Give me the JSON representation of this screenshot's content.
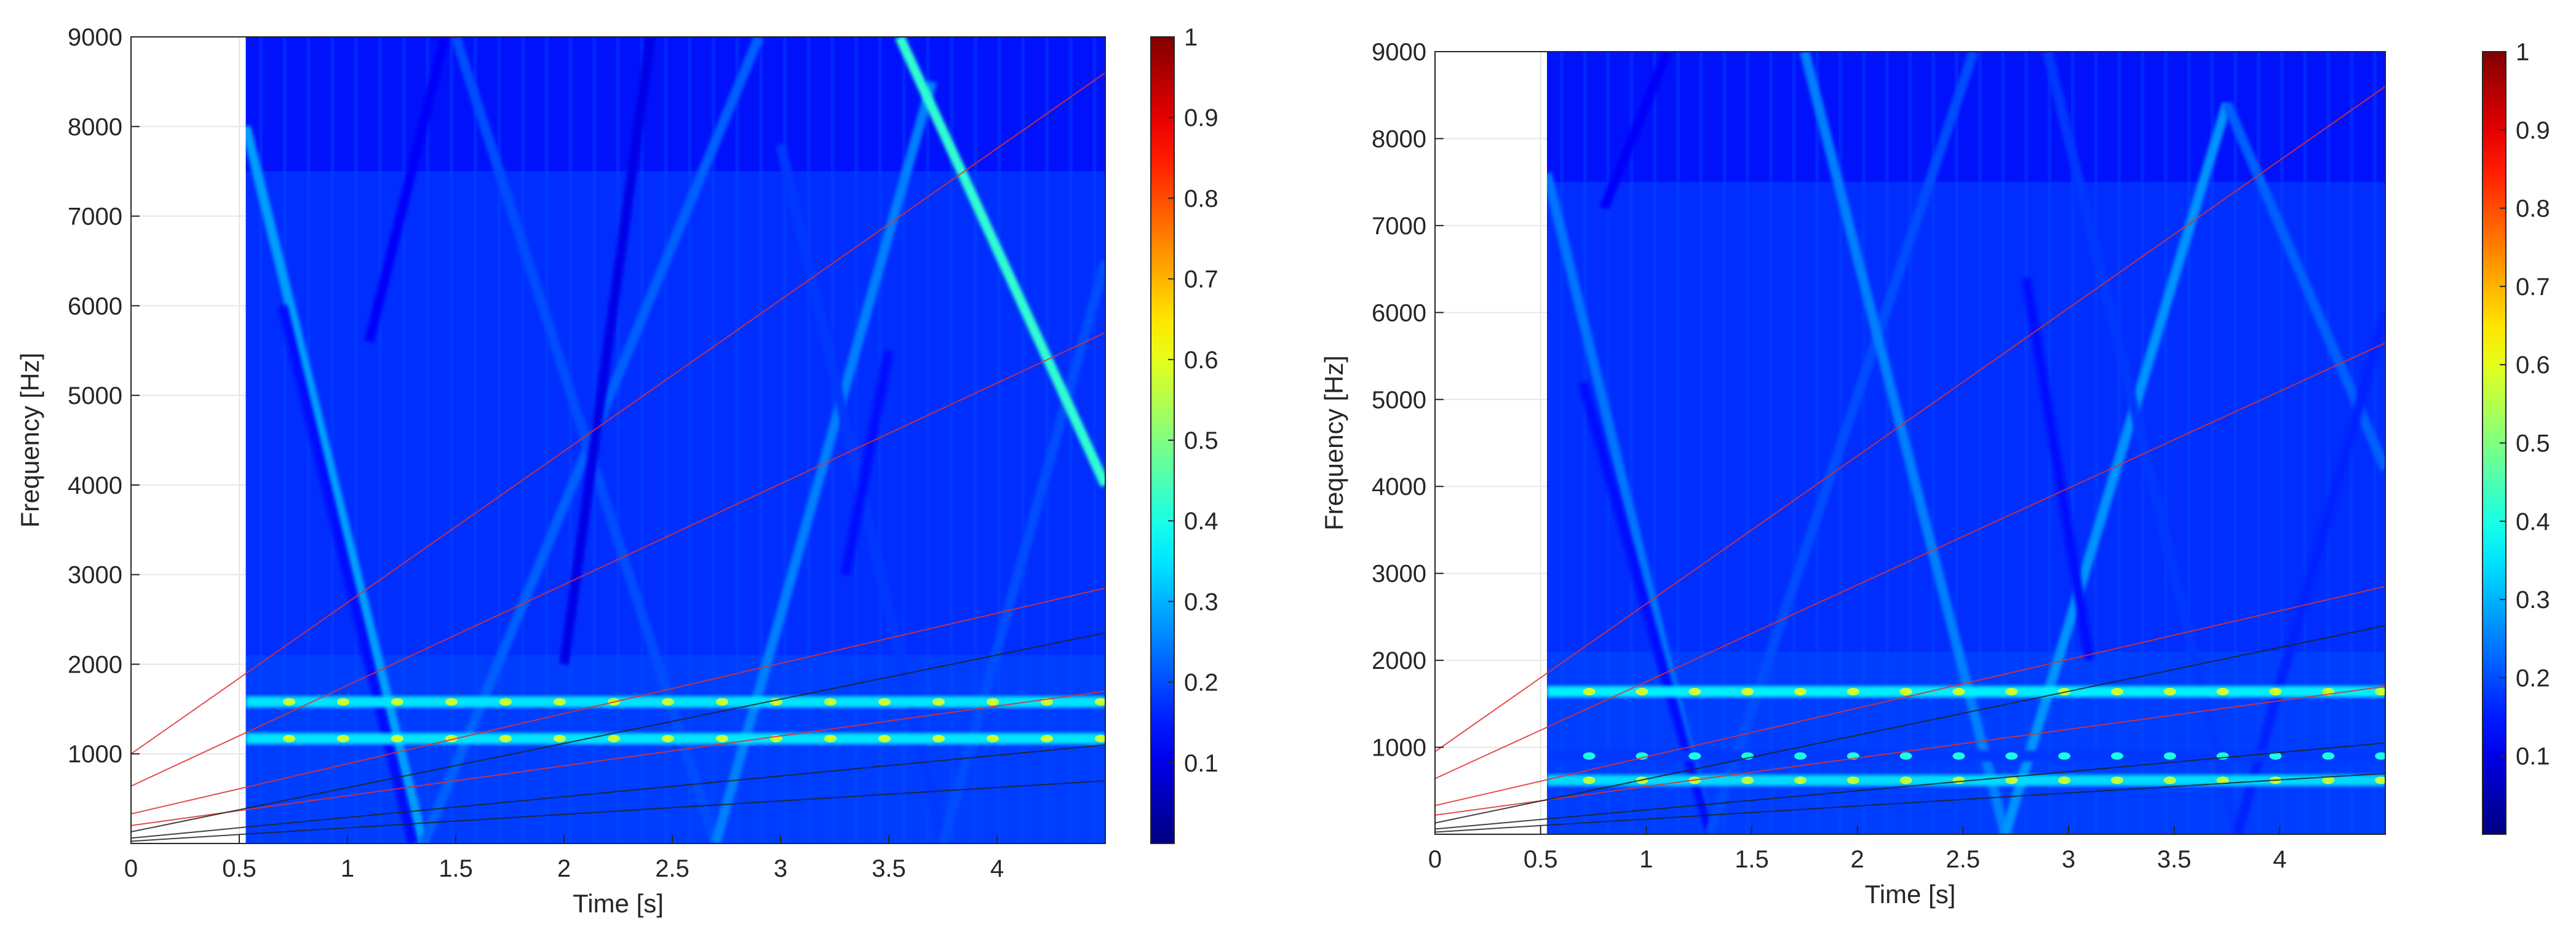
{
  "chart_data": [
    {
      "type": "heatmap",
      "xlabel": "Time [s]",
      "ylabel": "Frequency [Hz]",
      "xlim": [
        0,
        4.5
      ],
      "ylim": [
        0,
        9000
      ],
      "data_start_time": 0.53,
      "xticks": [
        0,
        0.5,
        1,
        1.5,
        2,
        2.5,
        3,
        3.5,
        4
      ],
      "xtick_labels": [
        "0",
        "0.5",
        "1",
        "1.5",
        "2",
        "2.5",
        "3",
        "3.5",
        "4"
      ],
      "yticks": [
        1000,
        2000,
        3000,
        4000,
        5000,
        6000,
        7000,
        8000,
        9000
      ],
      "ytick_labels": [
        "1000",
        "2000",
        "3000",
        "4000",
        "5000",
        "6000",
        "7000",
        "8000",
        "9000"
      ],
      "grid": true,
      "colormap": "jet",
      "colorbar": {
        "range": [
          0,
          1
        ],
        "ticks": [
          0.1,
          0.2,
          0.3,
          0.4,
          0.5,
          0.6,
          0.7,
          0.8,
          0.9,
          1
        ],
        "tick_labels": [
          "0.1",
          "0.2",
          "0.3",
          "0.4",
          "0.5",
          "0.6",
          "0.7",
          "0.8",
          "0.9",
          "1"
        ]
      },
      "horizontal_bands": [
        {
          "freq": 1580,
          "intensity": 0.35
        },
        {
          "freq": 1170,
          "intensity": 0.35
        }
      ],
      "diagonal_tracks": [
        {
          "points": [
            [
              0.53,
              8000
            ],
            [
              1.35,
              0
            ]
          ],
          "intensity": 0.28
        },
        {
          "points": [
            [
              0.7,
              6000
            ],
            [
              1.3,
              0
            ]
          ],
          "intensity": 0.14
        },
        {
          "points": [
            [
              1.35,
              0
            ],
            [
              2.9,
              9000
            ]
          ],
          "intensity": 0.22
        },
        {
          "points": [
            [
              1.5,
              9000
            ],
            [
              2.7,
              0
            ]
          ],
          "intensity": 0.2
        },
        {
          "points": [
            [
              1.1,
              5600
            ],
            [
              1.45,
              9000
            ]
          ],
          "intensity": 0.12
        },
        {
          "points": [
            [
              2.0,
              2000
            ],
            [
              2.4,
              9000
            ]
          ],
          "intensity": 0.1
        },
        {
          "points": [
            [
              2.7,
              0
            ],
            [
              3.7,
              8500
            ]
          ],
          "intensity": 0.25
        },
        {
          "points": [
            [
              3.0,
              7800
            ],
            [
              3.75,
              0
            ]
          ],
          "intensity": 0.18
        },
        {
          "points": [
            [
              3.75,
              0
            ],
            [
              4.5,
              6500
            ]
          ],
          "intensity": 0.2
        },
        {
          "points": [
            [
              3.55,
              9000
            ],
            [
              4.5,
              4000
            ]
          ],
          "intensity": 0.42
        },
        {
          "points": [
            [
              3.3,
              3000
            ],
            [
              3.5,
              5500
            ]
          ],
          "intensity": 0.14
        }
      ],
      "overlay_lines": [
        {
          "color": "#e03030",
          "points": [
            [
              0,
              1000
            ],
            [
              4.5,
              8600
            ]
          ]
        },
        {
          "color": "#e03030",
          "points": [
            [
              0,
              640
            ],
            [
              4.5,
              5700
            ]
          ]
        },
        {
          "color": "#e03030",
          "points": [
            [
              0,
              330
            ],
            [
              4.5,
              2850
            ]
          ]
        },
        {
          "color": "#e03030",
          "points": [
            [
              0,
              200
            ],
            [
              4.5,
              1700
            ]
          ]
        },
        {
          "color": "#222222",
          "points": [
            [
              0,
              130
            ],
            [
              4.5,
              2350
            ]
          ]
        },
        {
          "color": "#222222",
          "points": [
            [
              0,
              60
            ],
            [
              4.5,
              1100
            ]
          ]
        },
        {
          "color": "#222222",
          "points": [
            [
              0,
              25
            ],
            [
              4.5,
              700
            ]
          ]
        }
      ]
    },
    {
      "type": "heatmap",
      "xlabel": "Time [s]",
      "ylabel": "Frequency [Hz]",
      "xlim": [
        0,
        4.5
      ],
      "ylim": [
        0,
        9000
      ],
      "data_start_time": 0.53,
      "xticks": [
        0,
        0.5,
        1,
        1.5,
        2,
        2.5,
        3,
        3.5,
        4
      ],
      "xtick_labels": [
        "0",
        "0.5",
        "1",
        "1.5",
        "2",
        "2.5",
        "3",
        "3.5",
        "4"
      ],
      "yticks": [
        1000,
        2000,
        3000,
        4000,
        5000,
        6000,
        7000,
        8000,
        9000
      ],
      "ytick_labels": [
        "1000",
        "2000",
        "3000",
        "4000",
        "5000",
        "6000",
        "7000",
        "8000",
        "9000"
      ],
      "grid": true,
      "colormap": "jet",
      "colorbar": {
        "range": [
          0,
          1
        ],
        "ticks": [
          0.1,
          0.2,
          0.3,
          0.4,
          0.5,
          0.6,
          0.7,
          0.8,
          0.9,
          1
        ],
        "tick_labels": [
          "0.1",
          "0.2",
          "0.3",
          "0.4",
          "0.5",
          "0.6",
          "0.7",
          "0.8",
          "0.9",
          "1"
        ]
      },
      "horizontal_bands": [
        {
          "freq": 1640,
          "intensity": 0.36
        },
        {
          "freq": 900,
          "intensity": 0.18
        },
        {
          "freq": 620,
          "intensity": 0.34
        }
      ],
      "diagonal_tracks": [
        {
          "points": [
            [
              0.53,
              7600
            ],
            [
              1.3,
              0
            ]
          ],
          "intensity": 0.24
        },
        {
          "points": [
            [
              0.7,
              5200
            ],
            [
              1.3,
              0
            ]
          ],
          "intensity": 0.14
        },
        {
          "points": [
            [
              0.8,
              7200
            ],
            [
              1.1,
              9000
            ]
          ],
          "intensity": 0.12
        },
        {
          "points": [
            [
              1.3,
              0
            ],
            [
              2.55,
              9000
            ]
          ],
          "intensity": 0.2
        },
        {
          "points": [
            [
              1.75,
              9000
            ],
            [
              2.7,
              0
            ]
          ],
          "intensity": 0.25
        },
        {
          "points": [
            [
              2.7,
              0
            ],
            [
              3.75,
              8400
            ]
          ],
          "intensity": 0.27
        },
        {
          "points": [
            [
              2.8,
              6400
            ],
            [
              3.1,
              2000
            ]
          ],
          "intensity": 0.14
        },
        {
          "points": [
            [
              2.9,
              9000
            ],
            [
              3.8,
              0
            ]
          ],
          "intensity": 0.18
        },
        {
          "points": [
            [
              3.75,
              8400
            ],
            [
              4.5,
              4200
            ]
          ],
          "intensity": 0.22
        },
        {
          "points": [
            [
              3.8,
              0
            ],
            [
              4.5,
              6000
            ]
          ],
          "intensity": 0.16
        }
      ],
      "overlay_lines": [
        {
          "color": "#e03030",
          "points": [
            [
              0,
              950
            ],
            [
              4.5,
              8600
            ]
          ]
        },
        {
          "color": "#e03030",
          "points": [
            [
              0,
              640
            ],
            [
              4.5,
              5650
            ]
          ]
        },
        {
          "color": "#e03030",
          "points": [
            [
              0,
              330
            ],
            [
              4.5,
              2850
            ]
          ]
        },
        {
          "color": "#e03030",
          "points": [
            [
              0,
              220
            ],
            [
              4.5,
              1700
            ]
          ]
        },
        {
          "color": "#222222",
          "points": [
            [
              0,
              130
            ],
            [
              4.5,
              2400
            ]
          ]
        },
        {
          "color": "#222222",
          "points": [
            [
              0,
              60
            ],
            [
              4.5,
              1050
            ]
          ]
        },
        {
          "color": "#222222",
          "points": [
            [
              0,
              25
            ],
            [
              4.5,
              700
            ]
          ]
        }
      ]
    }
  ]
}
